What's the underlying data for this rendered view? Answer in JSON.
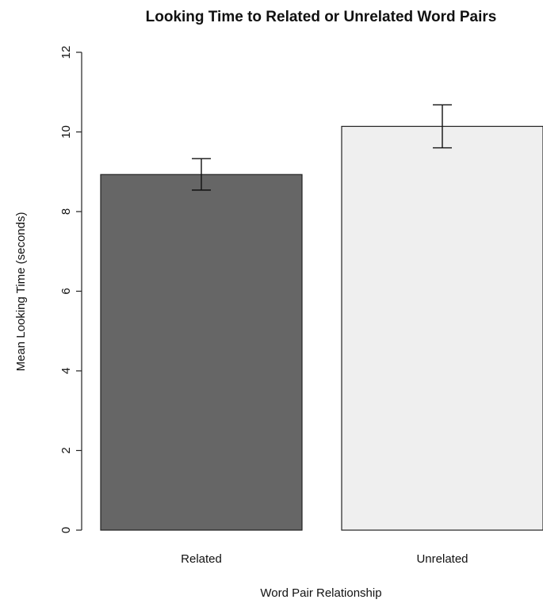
{
  "chart_data": {
    "type": "bar",
    "title": "Looking Time to Related or Unrelated Word Pairs",
    "xlabel": "Word Pair Relationship",
    "ylabel": "Mean Looking Time (seconds)",
    "categories": [
      "Related",
      "Unrelated"
    ],
    "values": [
      8.93,
      10.14
    ],
    "error_low": [
      8.54,
      9.6
    ],
    "error_high": [
      9.33,
      10.68
    ],
    "colors": [
      "#666666",
      "#efefef"
    ],
    "ylim": [
      0,
      12
    ],
    "yticks": [
      "0",
      "2",
      "4",
      "6",
      "8",
      "10",
      "12"
    ],
    "grid": false,
    "legend": "none"
  }
}
